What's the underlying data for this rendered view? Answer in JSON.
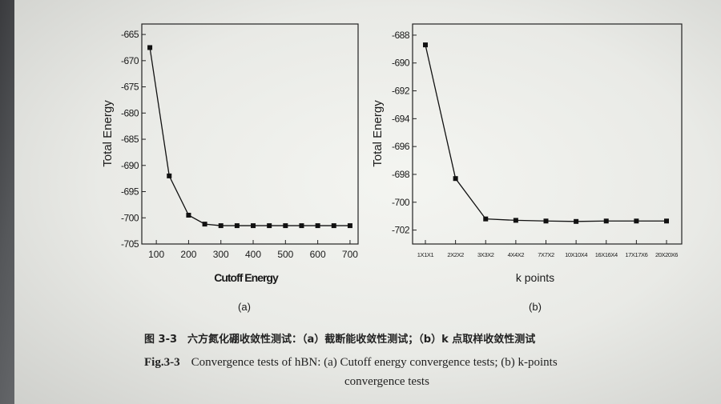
{
  "captions": {
    "cn": "图 3-3　六方氮化硼收敛性测试：（a）截断能收敛性测试；（b）k 点取样收敛性测试",
    "en_figure_no": "Fig.3-3",
    "en_text_line1": "Convergence tests of hBN: (a) Cutoff energy convergence tests; (b) k-points",
    "en_text_line2": "convergence tests"
  },
  "chart_data": [
    {
      "type": "line",
      "panel_label": "(a)",
      "xlabel": "Cutoff Energy",
      "ylabel": "Total Energy",
      "x": [
        80,
        140,
        200,
        250,
        300,
        350,
        400,
        450,
        500,
        550,
        600,
        650,
        700
      ],
      "y": [
        -667.5,
        -692,
        -699.5,
        -701.2,
        -701.5,
        -701.5,
        -701.5,
        -701.5,
        -701.5,
        -701.5,
        -701.5,
        -701.5,
        -701.5
      ],
      "xticks": [
        100,
        200,
        300,
        400,
        500,
        600,
        700
      ],
      "yticks": [
        -665,
        -670,
        -675,
        -680,
        -685,
        -690,
        -695,
        -700,
        -705
      ],
      "xlim": [
        55,
        725
      ],
      "ylim": [
        -705,
        -663
      ],
      "grid": false,
      "marker": "square"
    },
    {
      "type": "line",
      "panel_label": "(b)",
      "xlabel": "k points",
      "ylabel": "Total Energy",
      "categories": [
        "1X1X1",
        "2X2X2",
        "3X3X2",
        "4X4X2",
        "7X7X2",
        "10X10X4",
        "16X16X4",
        "17X17X6",
        "20X20X6"
      ],
      "values": [
        -688.7,
        -698.3,
        -701.2,
        -701.3,
        -701.35,
        -701.38,
        -701.35,
        -701.35,
        -701.35
      ],
      "yticks": [
        -688,
        -690,
        -692,
        -694,
        -696,
        -698,
        -700,
        -702
      ],
      "ylim": [
        -703,
        -687.2
      ],
      "grid": false,
      "marker": "square"
    }
  ]
}
